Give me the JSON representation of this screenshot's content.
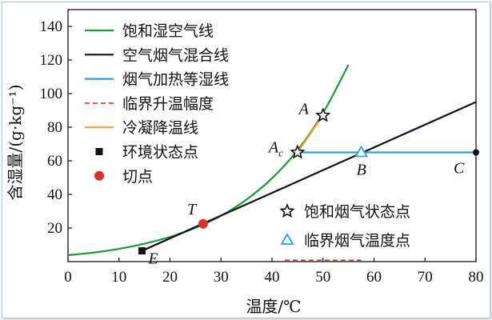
{
  "chart_data": {
    "type": "line",
    "xlabel": "温度/℃",
    "ylabel": "含湿量/(g·kg⁻¹)",
    "xlim": [
      0,
      80
    ],
    "ylim": [
      0,
      150
    ],
    "xticks": [
      0,
      10,
      20,
      30,
      40,
      50,
      60,
      70,
      80
    ],
    "yticks": [
      20,
      40,
      60,
      80,
      100,
      120,
      140
    ],
    "grid": false,
    "legend_position": "top-left",
    "series": [
      {
        "name": "饱和湿空气线",
        "color": "#1a9a3a",
        "style": "solid",
        "x": [
          0,
          5,
          10,
          15,
          20,
          25,
          30,
          35,
          40,
          45,
          50,
          55
        ],
        "y": [
          3.8,
          5.4,
          7.6,
          10.7,
          14.7,
          20.1,
          27.3,
          36.9,
          49.6,
          66.3,
          88.4,
          117.2
        ]
      },
      {
        "name": "空气烟气混合线",
        "color": "#111111",
        "style": "solid",
        "x": [
          14.5,
          80
        ],
        "y": [
          6.4,
          95
        ]
      },
      {
        "name": "烟气加热等湿线",
        "color": "#2b9fd9",
        "style": "solid",
        "x": [
          45,
          80
        ],
        "y": [
          65,
          65
        ]
      },
      {
        "name": "临界升温幅度",
        "color": "#e0302a",
        "style": "dashed",
        "x": [
          42.5,
          57.5
        ],
        "y": [
          0.8,
          0.8
        ]
      },
      {
        "name": "冷凝降温线",
        "color": "#f0a23c",
        "style": "solid",
        "x": [
          45,
          50
        ],
        "y": [
          65,
          87
        ]
      }
    ],
    "points": [
      {
        "label": "E",
        "sub": "",
        "x": 14.5,
        "y": 6.4,
        "marker": "square",
        "color": "#111111"
      },
      {
        "label": "T",
        "sub": "",
        "x": 26.5,
        "y": 22.5,
        "marker": "circle",
        "color": "#d9302a"
      },
      {
        "label": "A",
        "sub": "",
        "x": 50,
        "y": 87,
        "marker": "star",
        "color": "#111111"
      },
      {
        "label": "A",
        "sub": "c",
        "x": 45,
        "y": 65,
        "marker": "star",
        "color": "#111111"
      },
      {
        "label": "B",
        "sub": "",
        "x": 57.5,
        "y": 65,
        "marker": "triangle",
        "color": "#2b9fd9"
      },
      {
        "label": "C",
        "sub": "",
        "x": 80,
        "y": 65,
        "marker": "dot",
        "color": "#111111"
      }
    ],
    "legend": [
      {
        "label": "饱和湿空气线",
        "kind": "line",
        "color": "#1a9a3a"
      },
      {
        "label": "空气烟气混合线",
        "kind": "line",
        "color": "#111111"
      },
      {
        "label": "烟气加热等湿线",
        "kind": "line",
        "color": "#2b9fd9"
      },
      {
        "label": "临界升温幅度",
        "kind": "dashed",
        "color": "#e0302a"
      },
      {
        "label": "冷凝降温线",
        "kind": "line",
        "color": "#f0a23c"
      },
      {
        "label": "环境状态点",
        "kind": "square",
        "color": "#111111"
      },
      {
        "label": "切点",
        "kind": "circle",
        "color": "#d9302a"
      }
    ],
    "legend2": [
      {
        "label": "饱和烟气状态点",
        "kind": "star",
        "color": "#111111"
      },
      {
        "label": "临界烟气温度点",
        "kind": "triangle",
        "color": "#2b9fd9"
      }
    ]
  }
}
